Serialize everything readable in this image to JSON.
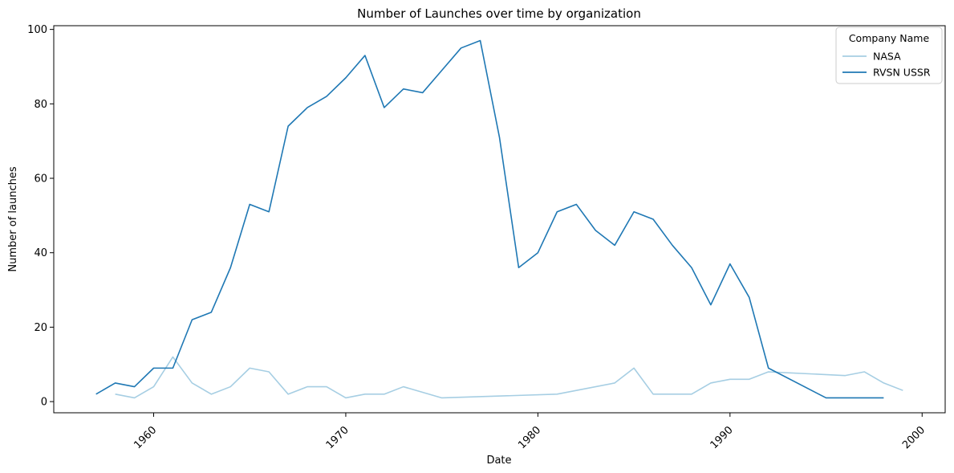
{
  "chart_data": {
    "type": "line",
    "title": "Number of Launches over time by organization",
    "xlabel": "Date",
    "ylabel": "Number of launches",
    "xlim": [
      1954.8,
      2001.2
    ],
    "ylim": [
      -3,
      101
    ],
    "xticks": [
      1960,
      1970,
      1980,
      1990,
      2000
    ],
    "xtick_labels": [
      "1960",
      "1970",
      "1980",
      "1990",
      "2000"
    ],
    "yticks": [
      0,
      20,
      40,
      60,
      80,
      100
    ],
    "ytick_labels": [
      "0",
      "20",
      "40",
      "60",
      "80",
      "100"
    ],
    "x_tick_rotation_deg": 45,
    "grid": false,
    "legend": {
      "title": "Company Name",
      "position": "top-right"
    },
    "series": [
      {
        "name": "NASA",
        "color": "#a6cee3",
        "x": [
          1958,
          1959,
          1960,
          1961,
          1962,
          1963,
          1964,
          1965,
          1966,
          1967,
          1968,
          1969,
          1970,
          1971,
          1972,
          1973,
          1975,
          1981,
          1984,
          1985,
          1986,
          1988,
          1989,
          1990,
          1991,
          1992,
          1996,
          1997,
          1998,
          1999
        ],
        "values": [
          2,
          1,
          4,
          12,
          5,
          2,
          4,
          9,
          8,
          2,
          4,
          4,
          1,
          2,
          2,
          4,
          1,
          2,
          5,
          9,
          2,
          2,
          5,
          6,
          6,
          8,
          7,
          8,
          5,
          3
        ]
      },
      {
        "name": "RVSN USSR",
        "color": "#1f78b4",
        "x": [
          1957,
          1958,
          1959,
          1960,
          1961,
          1962,
          1963,
          1964,
          1965,
          1966,
          1967,
          1968,
          1969,
          1970,
          1971,
          1972,
          1973,
          1974,
          1975,
          1976,
          1977,
          1978,
          1979,
          1980,
          1981,
          1982,
          1983,
          1984,
          1985,
          1986,
          1987,
          1988,
          1989,
          1990,
          1991,
          1992,
          1995,
          1996,
          1997,
          1998
        ],
        "values": [
          2,
          5,
          4,
          9,
          9,
          22,
          24,
          36,
          53,
          51,
          74,
          79,
          82,
          87,
          93,
          79,
          84,
          83,
          89,
          95,
          97,
          71,
          36,
          40,
          51,
          53,
          46,
          42,
          51,
          49,
          42,
          36,
          26,
          37,
          28,
          9,
          1,
          1,
          1,
          1
        ]
      }
    ]
  }
}
